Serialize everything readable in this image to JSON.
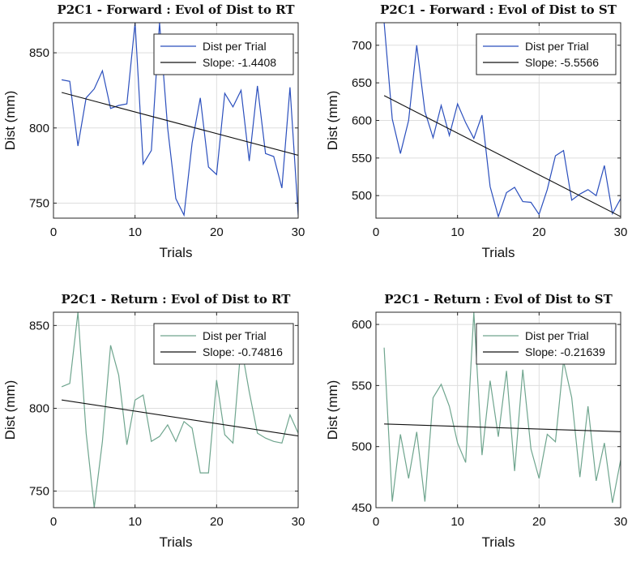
{
  "chart_data": [
    {
      "id": "fwd-rt",
      "type": "line",
      "title": "P2C1 - Forward : Evol of Dist to RT",
      "xlabel": "Trials",
      "ylabel": "Dist (mm)",
      "xlim": [
        0,
        30
      ],
      "ylim": [
        740,
        870
      ],
      "xticks": [
        0,
        10,
        20,
        30
      ],
      "yticks": [
        750,
        800,
        850
      ],
      "grid": true,
      "legend_position": "top-right",
      "series": [
        {
          "name": "Dist per Trial",
          "color": "#2b4fbd",
          "x": [
            1,
            2,
            3,
            4,
            5,
            6,
            7,
            8,
            9,
            10,
            11,
            12,
            13,
            14,
            15,
            16,
            17,
            18,
            19,
            20,
            21,
            22,
            23,
            24,
            25,
            26,
            27,
            28,
            29,
            30
          ],
          "values": [
            832,
            831,
            788,
            820,
            826,
            838,
            813,
            815,
            816,
            870,
            776,
            785,
            870,
            800,
            753,
            742,
            790,
            820,
            774,
            769,
            823,
            814,
            825,
            778,
            828,
            783,
            781,
            760,
            827,
            742
          ]
        },
        {
          "name": "Slope: -1.4408",
          "color": "#111111",
          "x": [
            1,
            30
          ],
          "values": [
            823.6,
            781.8
          ]
        }
      ]
    },
    {
      "id": "fwd-st",
      "type": "line",
      "title": "P2C1 - Forward : Evol of Dist to ST",
      "xlabel": "Trials",
      "ylabel": "Dist (mm)",
      "xlim": [
        0,
        30
      ],
      "ylim": [
        470,
        730
      ],
      "xticks": [
        0,
        10,
        20,
        30
      ],
      "yticks": [
        500,
        550,
        600,
        650,
        700
      ],
      "grid": true,
      "legend_position": "top-right",
      "series": [
        {
          "name": "Dist per Trial",
          "color": "#2b4fbd",
          "x": [
            1,
            2,
            3,
            4,
            5,
            6,
            7,
            8,
            9,
            10,
            11,
            12,
            13,
            14,
            15,
            16,
            17,
            18,
            19,
            20,
            21,
            22,
            23,
            24,
            25,
            26,
            27,
            28,
            29,
            30
          ],
          "values": [
            730,
            602,
            556,
            600,
            700,
            612,
            577,
            620,
            580,
            622,
            597,
            576,
            607,
            512,
            472,
            504,
            511,
            492,
            491,
            475,
            508,
            553,
            560,
            494,
            502,
            508,
            500,
            540,
            476,
            496
          ]
        },
        {
          "name": "Slope: -5.5566",
          "color": "#111111",
          "x": [
            1,
            30
          ],
          "values": [
            633.0,
            472.0
          ]
        }
      ]
    },
    {
      "id": "ret-rt",
      "type": "line",
      "title": "P2C1 - Return : Evol of Dist to RT",
      "xlabel": "Trials",
      "ylabel": "Dist (mm)",
      "xlim": [
        0,
        30
      ],
      "ylim": [
        740,
        858
      ],
      "xticks": [
        0,
        10,
        20,
        30
      ],
      "yticks": [
        750,
        800,
        850
      ],
      "grid": true,
      "legend_position": "top-right",
      "series": [
        {
          "name": "Dist per Trial",
          "color": "#6fa58e",
          "x": [
            1,
            2,
            3,
            4,
            5,
            6,
            7,
            8,
            9,
            10,
            11,
            12,
            13,
            14,
            15,
            16,
            17,
            18,
            19,
            20,
            21,
            22,
            23,
            24,
            25,
            26,
            27,
            28,
            29,
            30
          ],
          "values": [
            813,
            815,
            858,
            785,
            740,
            780,
            838,
            820,
            778,
            805,
            808,
            780,
            783,
            790,
            780,
            792,
            788,
            761,
            761,
            817,
            784,
            779,
            838,
            810,
            785,
            782,
            780,
            779,
            796,
            785
          ]
        },
        {
          "name": "Slope: -0.74816",
          "color": "#111111",
          "x": [
            1,
            30
          ],
          "values": [
            805.0,
            783.3
          ]
        }
      ]
    },
    {
      "id": "ret-st",
      "type": "line",
      "title": "P2C1 - Return : Evol of Dist to ST",
      "xlabel": "Trials",
      "ylabel": "Dist (mm)",
      "xlim": [
        0,
        30
      ],
      "ylim": [
        450,
        610
      ],
      "xticks": [
        0,
        10,
        20,
        30
      ],
      "yticks": [
        450,
        500,
        550,
        600
      ],
      "grid": true,
      "legend_position": "top-right",
      "series": [
        {
          "name": "Dist per Trial",
          "color": "#6fa58e",
          "x": [
            1,
            2,
            3,
            4,
            5,
            6,
            7,
            8,
            9,
            10,
            11,
            12,
            13,
            14,
            15,
            16,
            17,
            18,
            19,
            20,
            21,
            22,
            23,
            24,
            25,
            26,
            27,
            28,
            29,
            30
          ],
          "values": [
            581,
            455,
            510,
            474,
            512,
            455,
            540,
            551,
            533,
            503,
            487,
            610,
            493,
            554,
            508,
            562,
            480,
            563,
            498,
            474,
            510,
            504,
            570,
            540,
            475,
            533,
            472,
            503,
            454,
            489
          ]
        },
        {
          "name": "Slope: -0.21639",
          "color": "#111111",
          "x": [
            1,
            30
          ],
          "values": [
            518.5,
            512.2
          ]
        }
      ]
    }
  ]
}
